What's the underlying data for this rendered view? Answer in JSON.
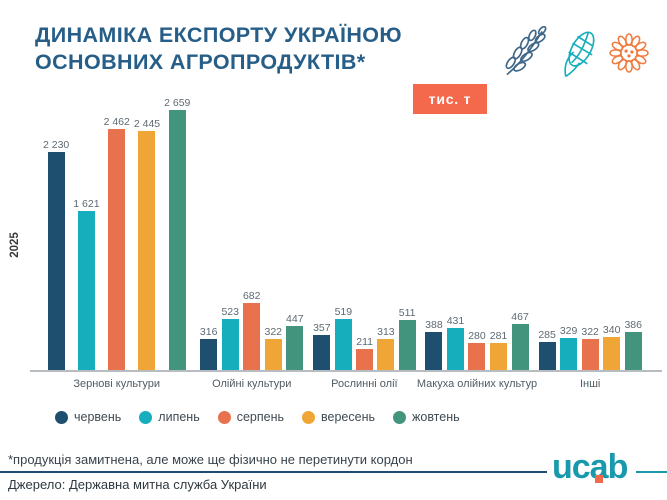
{
  "title": {
    "line1": "ДИНАМІКА ЕКСПОРТУ УКРАЇНОЮ",
    "line2": "ОСНОВНИХ АГРОПРОДУКТІВ*"
  },
  "unit_badge": "тис. т",
  "year_label": "2025",
  "icons": [
    "wheat-icon",
    "corn-icon",
    "sunflower-icon"
  ],
  "colors": {
    "title": "#275E88",
    "badge": "#F4694C",
    "baseline": "#B8BCC0",
    "divider": "#1F4B73",
    "logo_teal": "#1899AC",
    "logo_accent": "#F2684C",
    "wheat_icon": "#3E6687",
    "corn_icon": "#16AEBC",
    "sunflower_icon": "#EF7C3F"
  },
  "chart_data": {
    "type": "bar",
    "categories": [
      "Зернові культури",
      "Олійні культури",
      "Рослинні олії",
      "Макуха олійних культур",
      "Інші"
    ],
    "series": [
      {
        "name": "червень",
        "color": "#1F4F6F",
        "values": [
          2230,
          316,
          357,
          388,
          285
        ]
      },
      {
        "name": "липень",
        "color": "#16AEBC",
        "values": [
          1621,
          523,
          519,
          431,
          329
        ]
      },
      {
        "name": "серпень",
        "color": "#E8714E",
        "values": [
          2462,
          682,
          211,
          280,
          322
        ]
      },
      {
        "name": "вересень",
        "color": "#F0A637",
        "values": [
          2445,
          322,
          313,
          281,
          340
        ]
      },
      {
        "name": "жовтень",
        "color": "#42947C",
        "values": [
          2659,
          447,
          511,
          467,
          386
        ]
      }
    ],
    "title": "ДИНАМІКА ЕКСПОРТУ УКРАЇНОЮ ОСНОВНИХ АГРОПРОДУКТІВ*",
    "unit": "тис. т",
    "xlabel": "",
    "ylabel": "2025",
    "ylim": [
      0,
      2800
    ],
    "grid": false,
    "value_labels": true,
    "legend_position": "bottom"
  },
  "footnote": "*продукція замитнена, але може ще фізично не перетинути кордон",
  "source": "Джерело: Державна митна служба України",
  "logo": {
    "text": "ucab"
  }
}
